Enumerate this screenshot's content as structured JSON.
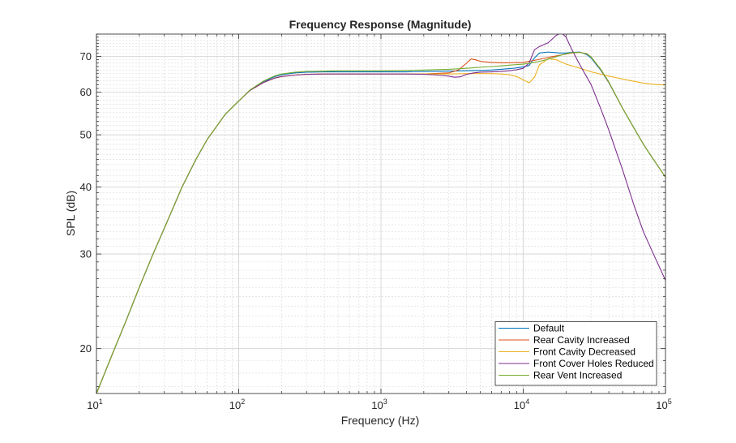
{
  "chart_data": {
    "type": "line",
    "title": "Frequency Response (Magnitude)",
    "xlabel": "Frequency (Hz)",
    "ylabel": "SPL (dB)",
    "x_scale": "log",
    "y_scale": "log",
    "xlim": [
      10,
      100000
    ],
    "ylim": [
      16.5,
      77
    ],
    "x_ticks": [
      {
        "value": 10,
        "base": "10",
        "exp": "1"
      },
      {
        "value": 100,
        "base": "10",
        "exp": "2"
      },
      {
        "value": 1000,
        "base": "10",
        "exp": "3"
      },
      {
        "value": 10000,
        "base": "10",
        "exp": "4"
      },
      {
        "value": 100000,
        "base": "10",
        "exp": "5"
      }
    ],
    "y_ticks": [
      {
        "value": 20,
        "label": "20"
      },
      {
        "value": 30,
        "label": "30"
      },
      {
        "value": 40,
        "label": "40"
      },
      {
        "value": 50,
        "label": "50"
      },
      {
        "value": 60,
        "label": "60"
      },
      {
        "value": 70,
        "label": "70"
      }
    ],
    "grid": true,
    "minor_grid": true,
    "legend_position": "bottom-right",
    "series": [
      {
        "name": "Default",
        "color": "#0072BD",
        "x": [
          10,
          13,
          16,
          20,
          25,
          30,
          40,
          50,
          60,
          80,
          100,
          120,
          150,
          180,
          200,
          250,
          300,
          400,
          500,
          700,
          1000,
          1500,
          2000,
          3000,
          4000,
          5000,
          6000,
          7000,
          8000,
          9000,
          10000,
          11000,
          12000,
          13000,
          15000,
          18000,
          20000,
          22000,
          25000,
          28000,
          30000,
          35000,
          40000,
          50000,
          60000,
          70000,
          80000,
          100000
        ],
        "y": [
          16.5,
          19.6,
          22.4,
          26,
          30,
          33.5,
          40,
          45,
          49,
          54.5,
          57.8,
          60.5,
          62.8,
          64.2,
          64.7,
          65.2,
          65.4,
          65.5,
          65.5,
          65.5,
          65.5,
          65.5,
          65.6,
          65.7,
          65.8,
          65.9,
          66,
          66.2,
          66.4,
          66.6,
          66.9,
          67.3,
          69.5,
          71,
          71.3,
          71,
          71,
          71.2,
          71.3,
          70.5,
          69.5,
          66,
          62.5,
          56,
          51.5,
          48,
          45.5,
          41.7
        ]
      },
      {
        "name": "Rear Cavity Increased",
        "color": "#D95319",
        "x": [
          10,
          13,
          16,
          20,
          25,
          30,
          40,
          50,
          60,
          80,
          100,
          120,
          150,
          180,
          200,
          250,
          300,
          400,
          500,
          700,
          1000,
          1500,
          2000,
          3000,
          3500,
          4000,
          4300,
          4600,
          5000,
          6000,
          7000,
          8000,
          10000,
          12000,
          14000,
          16000,
          18000,
          20000,
          22000,
          25000,
          28000,
          30000,
          35000,
          40000,
          50000,
          60000,
          70000,
          80000,
          100000
        ],
        "y": [
          16.5,
          19.6,
          22.4,
          26,
          30,
          33.5,
          40,
          45,
          49,
          54.5,
          57.8,
          60.5,
          62.6,
          63.8,
          64.2,
          64.6,
          64.8,
          64.9,
          64.9,
          64.9,
          64.9,
          64.9,
          64.9,
          65.2,
          66,
          68,
          69.2,
          69,
          68.5,
          68.2,
          68.1,
          68.1,
          68.2,
          68.8,
          69.4,
          69.9,
          70.3,
          70.7,
          71,
          71.2,
          70.8,
          69.8,
          66.2,
          62.6,
          56,
          51.5,
          48,
          45.5,
          41.7
        ]
      },
      {
        "name": "Front Cavity Decreased",
        "color": "#EDB120",
        "x": [
          10,
          13,
          16,
          20,
          25,
          30,
          40,
          50,
          60,
          80,
          100,
          120,
          150,
          180,
          200,
          250,
          300,
          400,
          500,
          700,
          1000,
          1500,
          2000,
          3000,
          4000,
          5000,
          6000,
          7000,
          8000,
          9000,
          10000,
          11000,
          12000,
          13000,
          15000,
          17000,
          20000,
          25000,
          30000,
          40000,
          50000,
          60000,
          70000,
          80000,
          100000
        ],
        "y": [
          16.5,
          19.6,
          22.4,
          26,
          30,
          33.5,
          40,
          45,
          49,
          54.5,
          57.8,
          60.5,
          62.6,
          63.8,
          64.2,
          64.6,
          64.8,
          64.9,
          64.9,
          64.9,
          64.9,
          64.9,
          64.9,
          64.9,
          65,
          65,
          65,
          64.9,
          64.7,
          64.2,
          63.3,
          62.5,
          64,
          67.5,
          69.3,
          69,
          67.7,
          66.5,
          65.5,
          64.3,
          63.5,
          62.9,
          62.4,
          62.1,
          61.9
        ]
      },
      {
        "name": "Front Cover Holes Reduced",
        "color": "#7E2F8E",
        "x": [
          10,
          13,
          16,
          20,
          25,
          30,
          40,
          50,
          60,
          80,
          100,
          120,
          150,
          180,
          200,
          250,
          300,
          400,
          500,
          700,
          1000,
          1500,
          2000,
          2500,
          3000,
          3300,
          3600,
          4000,
          4500,
          5000,
          6000,
          7000,
          8000,
          9000,
          10000,
          11000,
          12000,
          13000,
          15000,
          17000,
          18500,
          20000,
          22000,
          25000,
          30000,
          35000,
          40000,
          50000,
          60000,
          70000,
          80000,
          100000
        ],
        "y": [
          16.5,
          19.6,
          22.4,
          26,
          30,
          33.5,
          40,
          45,
          49,
          54.5,
          57.8,
          60.5,
          62.6,
          63.8,
          64.2,
          64.6,
          64.8,
          64.9,
          64.9,
          64.9,
          64.9,
          64.9,
          64.8,
          64.6,
          64.3,
          64,
          64.1,
          64.8,
          65.2,
          65.4,
          65.5,
          65.6,
          65.8,
          66.1,
          66.5,
          68,
          72,
          73,
          74.2,
          76.5,
          77.5,
          76,
          72,
          67.5,
          62,
          56,
          51,
          43,
          37,
          33,
          30.5,
          26.8
        ]
      },
      {
        "name": "Rear Vent Increased",
        "color": "#77AC30",
        "x": [
          10,
          13,
          16,
          20,
          25,
          30,
          40,
          50,
          60,
          80,
          100,
          120,
          150,
          180,
          200,
          250,
          300,
          400,
          500,
          700,
          1000,
          1500,
          2000,
          3000,
          4000,
          5000,
          6000,
          7000,
          8000,
          10000,
          12000,
          14000,
          16000,
          18000,
          20000,
          22000,
          25000,
          28000,
          30000,
          35000,
          40000,
          50000,
          60000,
          70000,
          80000,
          100000
        ],
        "y": [
          16.5,
          19.6,
          22.4,
          26,
          30,
          33.5,
          40,
          45,
          49,
          54.5,
          57.8,
          60.6,
          63,
          64.4,
          64.9,
          65.4,
          65.6,
          65.7,
          65.8,
          65.8,
          65.8,
          65.9,
          66,
          66.2,
          66.5,
          66.8,
          67,
          67.2,
          67.4,
          67.7,
          68.2,
          68.8,
          69.5,
          70.2,
          70.8,
          71.1,
          71.2,
          70.7,
          69.8,
          66.3,
          62.7,
          56,
          51.5,
          48,
          45.5,
          41.7
        ]
      }
    ]
  }
}
